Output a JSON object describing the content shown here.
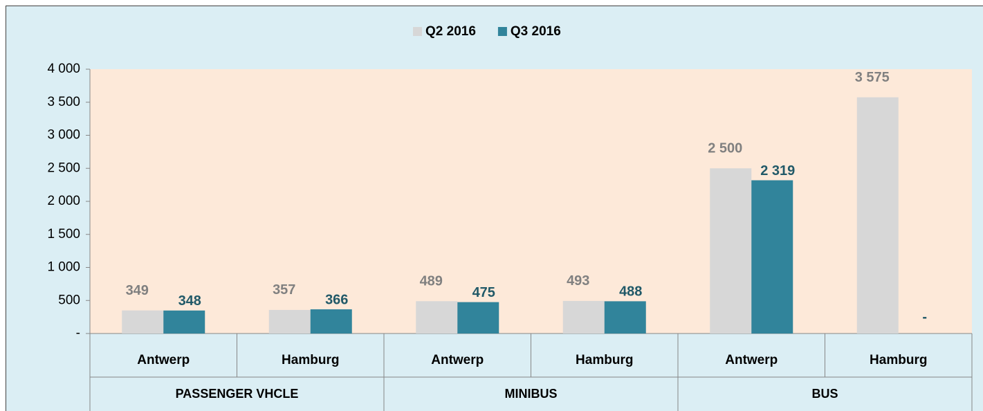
{
  "chart_data": {
    "type": "bar",
    "categories": [
      "Antwerp",
      "Hamburg",
      "Antwerp",
      "Hamburg",
      "Antwerp",
      "Hamburg"
    ],
    "groups": [
      "PASSENGER VHCLE",
      "MINIBUS",
      "BUS"
    ],
    "series": [
      {
        "name": "Q2 2016",
        "color": "#a6a6a6",
        "pattern": "speckle",
        "label_color": "#808080",
        "values": [
          349,
          357,
          489,
          493,
          2500,
          3575
        ],
        "value_labels": [
          "349",
          "357",
          "489",
          "493",
          "2 500",
          "3 575"
        ]
      },
      {
        "name": "Q3 2016",
        "color": "#31849b",
        "label_color": "#215968",
        "values": [
          348,
          366,
          475,
          488,
          2319,
          0
        ],
        "value_labels": [
          "348",
          "366",
          "475",
          "488",
          "2 319",
          "-"
        ]
      }
    ],
    "ylim": [
      0,
      4000
    ],
    "yticks": [
      {
        "value": 0,
        "label": "-"
      },
      500,
      {
        "value": 1000,
        "label": "1 000"
      },
      {
        "value": 1500,
        "label": "1 500"
      },
      {
        "value": 2000,
        "label": "2 000"
      },
      {
        "value": 2500,
        "label": "2 500"
      },
      {
        "value": 3000,
        "label": "3 000"
      },
      {
        "value": 3500,
        "label": "3 500"
      },
      {
        "value": 4000,
        "label": "4 000"
      }
    ],
    "legend": "top"
  }
}
